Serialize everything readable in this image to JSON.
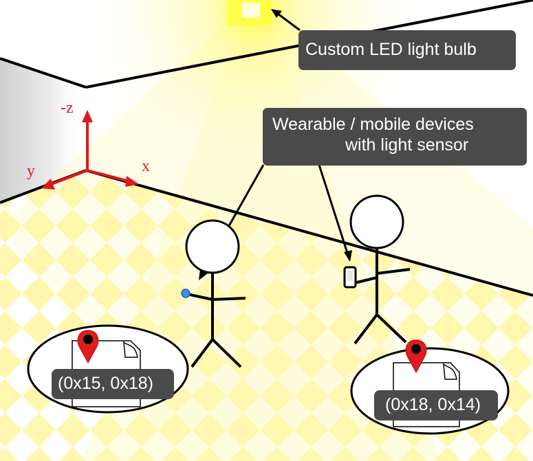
{
  "callouts": {
    "led_bulb": "Custom LED light bulb",
    "wearable_line1": "Wearable / mobile devices",
    "wearable_line2": "with light sensor"
  },
  "axes": {
    "z": "-z",
    "y": "y",
    "x": "x"
  },
  "locations": {
    "left": "(0x15, 0x18)",
    "right": "(0x18, 0x14)"
  },
  "colors": {
    "light_yellow": "#fff59a",
    "axis_red": "#e01818",
    "pin_red": "#e01c1c",
    "callout_bg": "#4a4a4a",
    "sensor_blue": "#3d8ff0"
  }
}
